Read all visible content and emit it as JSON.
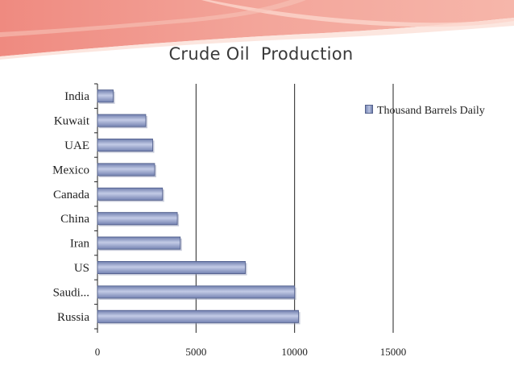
{
  "slide": {
    "title": "Crude Oil  Production",
    "colors": {
      "banner_top": "#ef8f86",
      "banner_light": "#fbe1da",
      "bar_fill": "#9aa7d0",
      "bar_edge": "#4f5d8a",
      "grid": "#222222"
    }
  },
  "chart_data": {
    "type": "bar",
    "orientation": "horizontal",
    "title": "Crude Oil  Production",
    "xlabel": "",
    "ylabel": "",
    "categories": [
      "India",
      "Kuwait",
      "UAE",
      "Mexico",
      "Canada",
      "China",
      "Iran",
      "US",
      "Saudi...",
      "Russia"
    ],
    "series": [
      {
        "name": "Thousand Barrels Daily",
        "values": [
          800,
          2450,
          2800,
          2900,
          3300,
          4050,
          4200,
          7500,
          10000,
          10200
        ]
      }
    ],
    "xlim": [
      0,
      15000
    ],
    "ticks": [
      "0",
      "5000",
      "10000",
      "15000"
    ],
    "tick_values": [
      0,
      5000,
      10000,
      15000
    ],
    "grid": "vertical major gridlines",
    "legend_position": "right"
  }
}
